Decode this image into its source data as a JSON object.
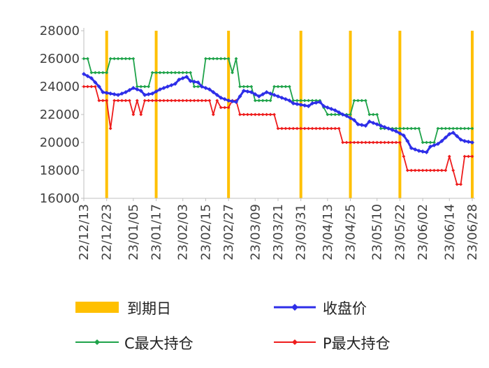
{
  "chart_data": {
    "type": "line",
    "ylim": [
      16000,
      28000
    ],
    "yticks": [
      16000,
      18000,
      20000,
      22000,
      24000,
      26000,
      28000
    ],
    "x_tick_labels": [
      "22/12/13",
      "22/12/23",
      "23/01/05",
      "23/01/17",
      "23/02/03",
      "23/02/15",
      "23/02/27",
      "23/03/09",
      "23/03/21",
      "23/03/31",
      "23/04/13",
      "23/04/25",
      "23/05/10",
      "23/05/22",
      "23/06/02",
      "23/06/14",
      "23/06/28"
    ],
    "expiry_dates": [
      "22/12/23",
      "23/01/17",
      "23/02/27",
      "23/03/31",
      "23/04/25",
      "23/05/22",
      "23/06/28"
    ],
    "legend": {
      "expiry": "到期日",
      "close": "收盘价",
      "call_oi": "C最大持仓",
      "put_oi": "P最大持仓"
    },
    "colors": {
      "expiry": "#FFC000",
      "close": "#2E2EE8",
      "call_oi": "#1FA34A",
      "put_oi": "#EE1C1C",
      "axis": "#BFBFBF",
      "text": "#404040"
    },
    "series": [
      {
        "key": "close",
        "points": [
          [
            0,
            24900
          ],
          [
            2,
            24600
          ],
          [
            4,
            24000
          ],
          [
            5,
            23600
          ],
          [
            7,
            23500
          ],
          [
            9,
            23400
          ],
          [
            10,
            23500
          ],
          [
            11,
            23600
          ],
          [
            13,
            23900
          ],
          [
            15,
            23700
          ],
          [
            16,
            23400
          ],
          [
            18,
            23500
          ],
          [
            20,
            23800
          ],
          [
            22,
            24000
          ],
          [
            24,
            24200
          ],
          [
            25,
            24500
          ],
          [
            27,
            24700
          ],
          [
            28,
            24400
          ],
          [
            30,
            24300
          ],
          [
            31,
            24000
          ],
          [
            33,
            23800
          ],
          [
            35,
            23400
          ],
          [
            36,
            23200
          ],
          [
            38,
            23000
          ],
          [
            40,
            22900
          ],
          [
            41,
            23300
          ],
          [
            42,
            23700
          ],
          [
            44,
            23600
          ],
          [
            46,
            23300
          ],
          [
            48,
            23600
          ],
          [
            50,
            23400
          ],
          [
            52,
            23200
          ],
          [
            54,
            23000
          ],
          [
            55,
            22800
          ],
          [
            57,
            22700
          ],
          [
            59,
            22600
          ],
          [
            60,
            22800
          ],
          [
            62,
            22900
          ],
          [
            63,
            22600
          ],
          [
            65,
            22400
          ],
          [
            66,
            22300
          ],
          [
            68,
            22000
          ],
          [
            69,
            21900
          ],
          [
            71,
            21600
          ],
          [
            72,
            21300
          ],
          [
            74,
            21200
          ],
          [
            75,
            21500
          ],
          [
            77,
            21300
          ],
          [
            79,
            21100
          ],
          [
            80,
            21000
          ],
          [
            82,
            20800
          ],
          [
            84,
            20500
          ],
          [
            85,
            20100
          ],
          [
            86,
            19600
          ],
          [
            88,
            19400
          ],
          [
            90,
            19300
          ],
          [
            91,
            19700
          ],
          [
            93,
            19900
          ],
          [
            94,
            20100
          ],
          [
            96,
            20600
          ],
          [
            97,
            20700
          ],
          [
            99,
            20200
          ],
          [
            100,
            20100
          ],
          [
            102,
            20000
          ]
        ]
      },
      {
        "key": "call_oi",
        "points": [
          [
            0,
            26000
          ],
          [
            1,
            26000
          ],
          [
            2,
            25000
          ],
          [
            6,
            25000
          ],
          [
            7,
            26000
          ],
          [
            13,
            26000
          ],
          [
            14,
            24000
          ],
          [
            17,
            24000
          ],
          [
            18,
            25000
          ],
          [
            28,
            25000
          ],
          [
            29,
            24000
          ],
          [
            31,
            24000
          ],
          [
            32,
            26000
          ],
          [
            38,
            26000
          ],
          [
            39,
            25000
          ],
          [
            40,
            26000
          ],
          [
            41,
            24000
          ],
          [
            42,
            24000
          ],
          [
            43,
            24000
          ],
          [
            44,
            24000
          ],
          [
            45,
            23000
          ],
          [
            49,
            23000
          ],
          [
            50,
            24000
          ],
          [
            54,
            24000
          ],
          [
            55,
            23000
          ],
          [
            61,
            23000
          ],
          [
            62,
            23000
          ],
          [
            64,
            22000
          ],
          [
            70,
            22000
          ],
          [
            71,
            23000
          ],
          [
            74,
            23000
          ],
          [
            75,
            22000
          ],
          [
            77,
            22000
          ],
          [
            78,
            21000
          ],
          [
            85,
            21000
          ],
          [
            86,
            21000
          ],
          [
            88,
            21000
          ],
          [
            89,
            20000
          ],
          [
            92,
            20000
          ],
          [
            93,
            21000
          ],
          [
            101,
            21000
          ],
          [
            102,
            21000
          ]
        ]
      },
      {
        "key": "put_oi",
        "points": [
          [
            0,
            24000
          ],
          [
            3,
            24000
          ],
          [
            4,
            23000
          ],
          [
            6,
            23000
          ],
          [
            7,
            21000
          ],
          [
            8,
            23000
          ],
          [
            12,
            23000
          ],
          [
            13,
            22000
          ],
          [
            14,
            23000
          ],
          [
            15,
            22000
          ],
          [
            16,
            23000
          ],
          [
            33,
            23000
          ],
          [
            34,
            22000
          ],
          [
            35,
            23000
          ],
          [
            36,
            22500
          ],
          [
            38,
            22500
          ],
          [
            39,
            23000
          ],
          [
            40,
            23000
          ],
          [
            41,
            22000
          ],
          [
            50,
            22000
          ],
          [
            51,
            21000
          ],
          [
            67,
            21000
          ],
          [
            68,
            20000
          ],
          [
            83,
            20000
          ],
          [
            84,
            19000
          ],
          [
            85,
            18000
          ],
          [
            95,
            18000
          ],
          [
            96,
            19000
          ],
          [
            97,
            18000
          ],
          [
            98,
            17000
          ],
          [
            99,
            17000
          ],
          [
            100,
            19000
          ],
          [
            102,
            19000
          ]
        ]
      }
    ]
  }
}
